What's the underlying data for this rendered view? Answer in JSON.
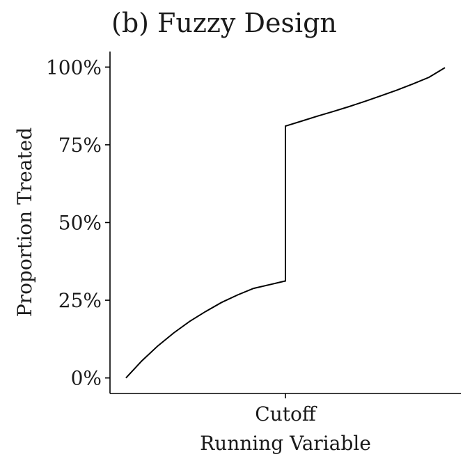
{
  "chart_data": {
    "type": "line",
    "title": "(b) Fuzzy Design",
    "xlabel": "Running Variable",
    "ylabel": "Proportion Treated",
    "x_ticks": [
      {
        "value": 0,
        "label": "Cutoff"
      }
    ],
    "y_ticks": [
      {
        "value": 0,
        "label": "0%"
      },
      {
        "value": 0.25,
        "label": "25%"
      },
      {
        "value": 0.5,
        "label": "50%"
      },
      {
        "value": 0.75,
        "label": "75%"
      },
      {
        "value": 1.0,
        "label": "100%"
      }
    ],
    "xlim": [
      -1.1,
      1.1
    ],
    "ylim": [
      -0.05,
      1.05
    ],
    "grid": false,
    "series": [
      {
        "color": "#000000",
        "points": [
          [
            -1.0,
            0.0
          ],
          [
            -0.9,
            0.055
          ],
          [
            -0.8,
            0.103
          ],
          [
            -0.7,
            0.145
          ],
          [
            -0.6,
            0.182
          ],
          [
            -0.5,
            0.214
          ],
          [
            -0.4,
            0.243
          ],
          [
            -0.3,
            0.267
          ],
          [
            -0.2,
            0.288
          ],
          [
            -0.1,
            0.3
          ],
          [
            0.0,
            0.312
          ],
          [
            0.0,
            0.81
          ],
          [
            0.1,
            0.826
          ],
          [
            0.2,
            0.842
          ],
          [
            0.3,
            0.857
          ],
          [
            0.4,
            0.873
          ],
          [
            0.5,
            0.89
          ],
          [
            0.6,
            0.908
          ],
          [
            0.7,
            0.926
          ],
          [
            0.8,
            0.946
          ],
          [
            0.9,
            0.967
          ],
          [
            1.0,
            0.998
          ]
        ]
      }
    ]
  }
}
